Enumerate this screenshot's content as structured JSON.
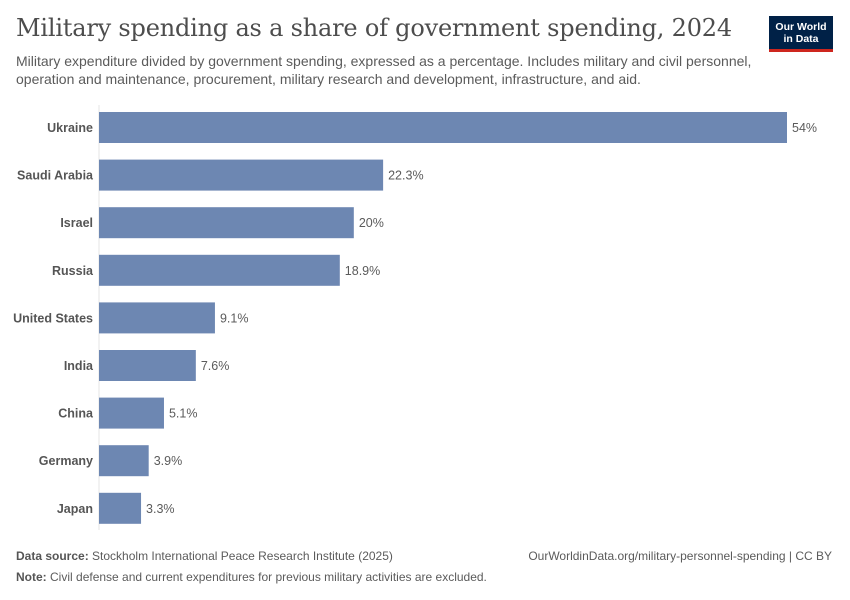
{
  "header": {
    "title": "Military spending as a share of government spending, 2024",
    "subtitle": "Military expenditure divided by government spending, expressed as a percentage. Includes military and civil personnel, operation and maintenance, procurement, military research and development, infrastructure, and aid.",
    "logo_line1": "Our World",
    "logo_line2": "in Data"
  },
  "chart_data": {
    "type": "bar",
    "orientation": "horizontal",
    "categories": [
      "Ukraine",
      "Saudi Arabia",
      "Israel",
      "Russia",
      "United States",
      "India",
      "China",
      "Germany",
      "Japan"
    ],
    "values": [
      54,
      22.3,
      20,
      18.9,
      9.1,
      7.6,
      5.1,
      3.9,
      3.3
    ],
    "value_labels": [
      "54%",
      "22.3%",
      "20%",
      "18.9%",
      "9.1%",
      "7.6%",
      "5.1%",
      "3.9%",
      "3.3%"
    ],
    "unit": "%",
    "xlim": [
      0,
      54
    ],
    "bar_color": "#6d87b2",
    "grid": false
  },
  "footer": {
    "source_label": "Data source:",
    "source_text": "Stockholm International Peace Research Institute (2025)",
    "url_text": "OurWorldinData.org/military-personnel-spending | CC BY",
    "note_label": "Note:",
    "note_text": "Civil defense and current expenditures for previous military activities are excluded."
  }
}
